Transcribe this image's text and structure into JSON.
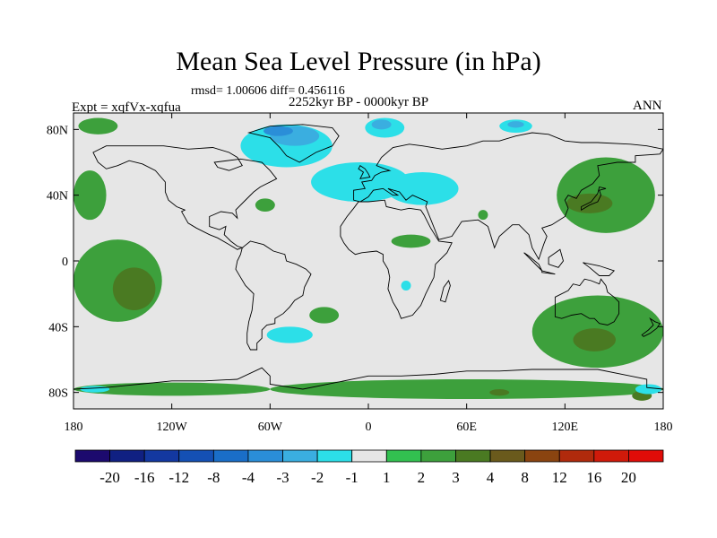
{
  "chart_data": {
    "type": "heatmap",
    "title": "Mean Sea Level Pressure (in hPa)",
    "subtitle": "rmsd= 1.00606  diff= 0.456116",
    "center_label": "2252kyr BP - 0000kyr BP",
    "left_label": "Expt = xqfVx-xqfua",
    "right_label": "ANN",
    "x_ticks": [
      {
        "value": -180,
        "label": "180"
      },
      {
        "value": -120,
        "label": "120W"
      },
      {
        "value": -60,
        "label": "60W"
      },
      {
        "value": 0,
        "label": "0"
      },
      {
        "value": 60,
        "label": "60E"
      },
      {
        "value": 120,
        "label": "120E"
      },
      {
        "value": 180,
        "label": "180"
      }
    ],
    "y_ticks": [
      {
        "value": 80,
        "label": "80N"
      },
      {
        "value": 40,
        "label": "40N"
      },
      {
        "value": 0,
        "label": "0"
      },
      {
        "value": -40,
        "label": "40S"
      },
      {
        "value": -80,
        "label": "80S"
      }
    ],
    "xlim": [
      -180,
      180
    ],
    "ylim": [
      -90,
      90
    ],
    "colorbar": {
      "labels": [
        "-20",
        "-16",
        "-12",
        "-8",
        "-4",
        "-3",
        "-2",
        "-1",
        "1",
        "2",
        "3",
        "4",
        "8",
        "12",
        "16",
        "20"
      ],
      "colors": [
        "#1c0a6e",
        "#102082",
        "#1338a0",
        "#1450b4",
        "#1a6ec8",
        "#2a8ed8",
        "#3aaee0",
        "#2cdfe8",
        "#e6e6e6",
        "#32c050",
        "#3da03c",
        "#4a7a22",
        "#6a5a1c",
        "#8a4410",
        "#b02a0c",
        "#d01a0a",
        "#e00c08"
      ]
    },
    "regions": [
      {
        "level": "2",
        "lon": -165,
        "lat": 82,
        "rx": 12,
        "ry": 5
      },
      {
        "level": "2",
        "lon": -170,
        "lat": 40,
        "rx": 10,
        "ry": 15
      },
      {
        "level": "2",
        "lon": -153,
        "lat": -12,
        "rx": 27,
        "ry": 25
      },
      {
        "level": "3",
        "lon": -143,
        "lat": -17,
        "rx": 13,
        "ry": 13
      },
      {
        "level": "2",
        "lon": -63,
        "lat": 34,
        "rx": 6,
        "ry": 4
      },
      {
        "level": "2",
        "lon": -27,
        "lat": -33,
        "rx": 9,
        "ry": 5
      },
      {
        "level": "2",
        "lon": 26,
        "lat": 12,
        "rx": 12,
        "ry": 4
      },
      {
        "level": "2",
        "lon": 145,
        "lat": 40,
        "rx": 30,
        "ry": 23
      },
      {
        "level": "3",
        "lon": 135,
        "lat": 35,
        "rx": 14,
        "ry": 6
      },
      {
        "level": "2",
        "lon": 140,
        "lat": -43,
        "rx": 40,
        "ry": 22
      },
      {
        "level": "3",
        "lon": 138,
        "lat": -48,
        "rx": 13,
        "ry": 7
      },
      {
        "level": "2",
        "lon": 60,
        "lat": -78,
        "rx": 120,
        "ry": 6
      },
      {
        "level": "3",
        "lon": 80,
        "lat": -80,
        "rx": 6,
        "ry": 2
      },
      {
        "level": "3",
        "lon": 167,
        "lat": -82,
        "rx": 6,
        "ry": 3
      },
      {
        "level": "2",
        "lon": -120,
        "lat": -78,
        "rx": 60,
        "ry": 4
      },
      {
        "level": "-1",
        "lon": -5,
        "lat": 48,
        "rx": 30,
        "ry": 12
      },
      {
        "level": "-1",
        "lon": 33,
        "lat": 44,
        "rx": 22,
        "ry": 10
      },
      {
        "level": "-1",
        "lon": -50,
        "lat": 70,
        "rx": 28,
        "ry": 13
      },
      {
        "level": "-2",
        "lon": -45,
        "lat": 76,
        "rx": 15,
        "ry": 6
      },
      {
        "level": "-3",
        "lon": -55,
        "lat": 79,
        "rx": 9,
        "ry": 3
      },
      {
        "level": "-1",
        "lon": 10,
        "lat": 81,
        "rx": 12,
        "ry": 6
      },
      {
        "level": "-2",
        "lon": 8,
        "lat": 83,
        "rx": 6,
        "ry": 3
      },
      {
        "level": "-1",
        "lon": 90,
        "lat": 82,
        "rx": 10,
        "ry": 4
      },
      {
        "level": "-2",
        "lon": 90,
        "lat": 83,
        "rx": 5,
        "ry": 2
      },
      {
        "level": "-1",
        "lon": -48,
        "lat": -45,
        "rx": 14,
        "ry": 5
      },
      {
        "level": "-1",
        "lon": 23,
        "lat": -15,
        "rx": 3,
        "ry": 3
      },
      {
        "level": "-1",
        "lon": 171,
        "lat": -78,
        "rx": 8,
        "ry": 3
      },
      {
        "level": "-1",
        "lon": -167,
        "lat": -78,
        "rx": 9,
        "ry": 2
      },
      {
        "level": "2",
        "lon": 70,
        "lat": 28,
        "rx": 3,
        "ry": 3
      }
    ]
  }
}
